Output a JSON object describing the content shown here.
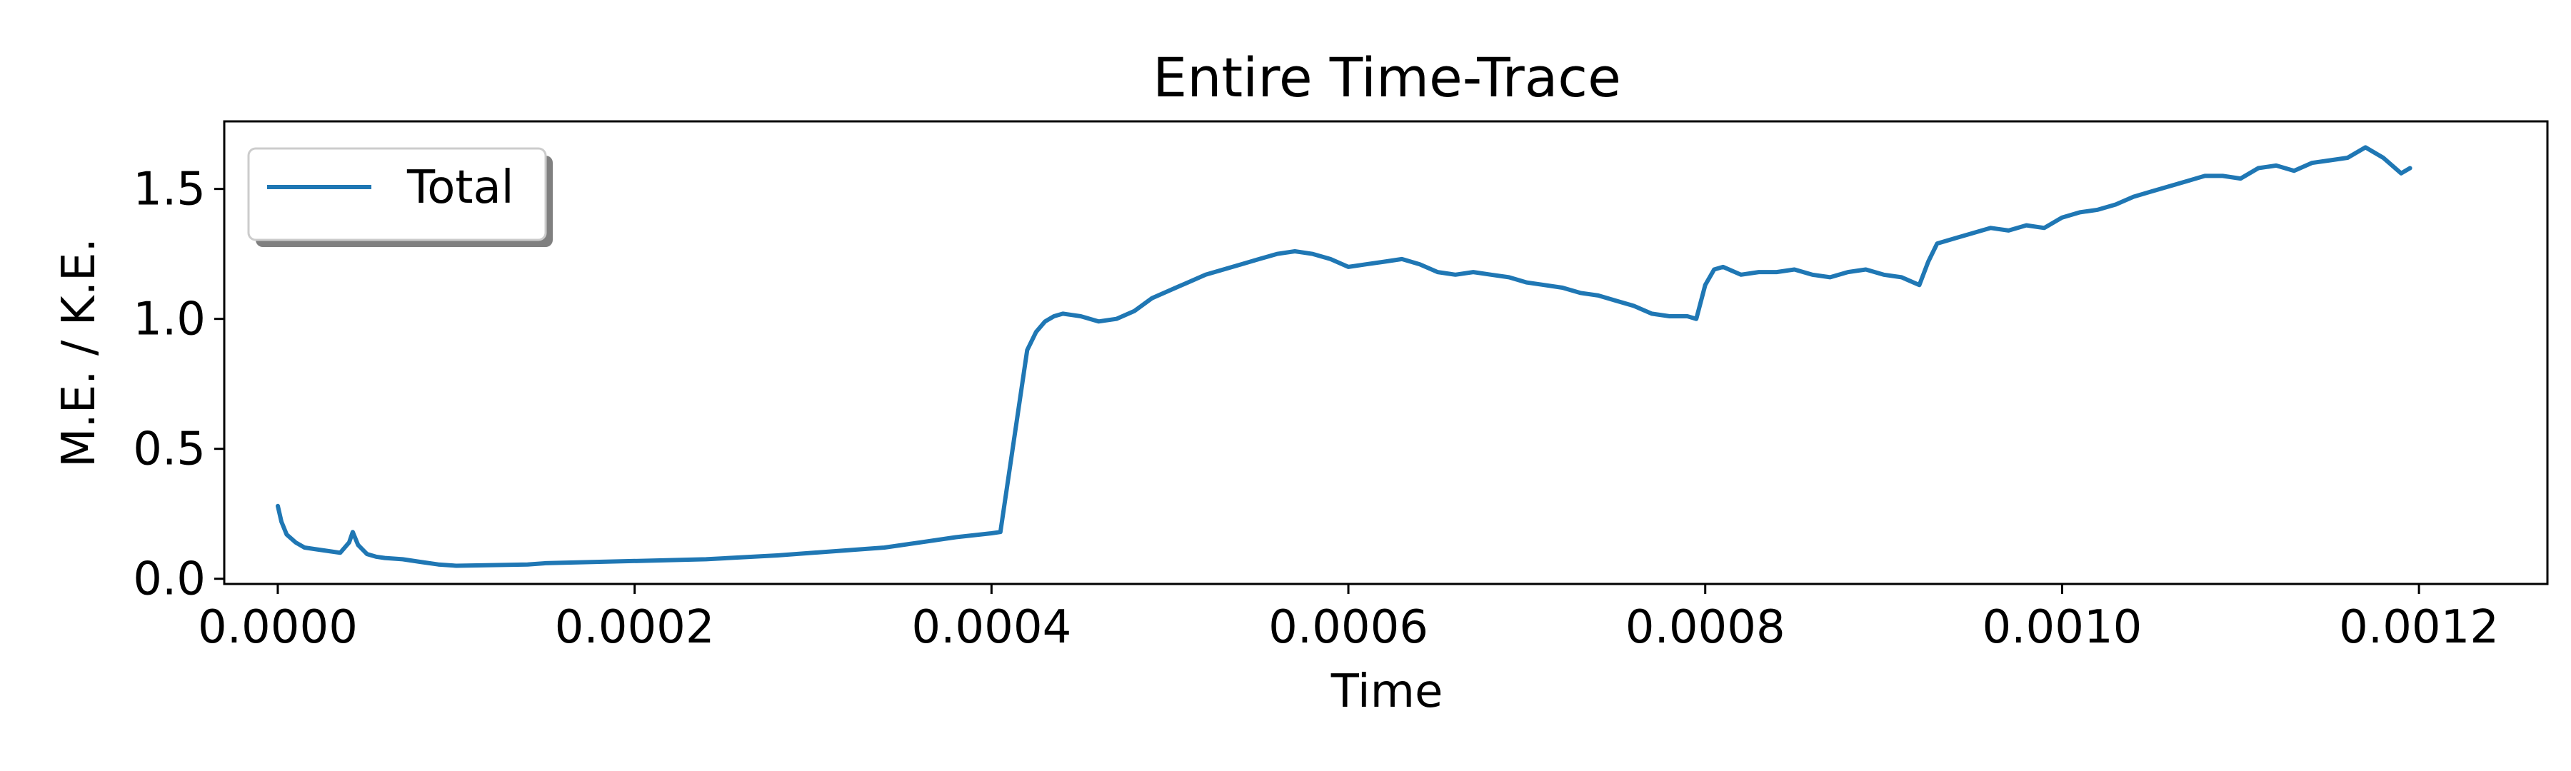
{
  "chart_data": {
    "type": "line",
    "title": "Entire Time-Trace",
    "xlabel": "Time",
    "ylabel": "M.E. / K.E.",
    "xlim": [
      -3e-05,
      0.001272
    ],
    "ylim": [
      -0.02,
      1.76
    ],
    "xticks": [
      0.0,
      0.0002,
      0.0004,
      0.0006,
      0.0008,
      0.001,
      0.0012
    ],
    "xtick_labels": [
      "0.0000",
      "0.0002",
      "0.0004",
      "0.0006",
      "0.0008",
      "0.0010",
      "0.0012"
    ],
    "yticks": [
      0.0,
      0.5,
      1.0,
      1.5
    ],
    "ytick_labels": [
      "0.0",
      "0.5",
      "1.0",
      "1.5"
    ],
    "grid": false,
    "legend_position": "upper-left",
    "color": "#1f77b4",
    "series": [
      {
        "name": "Total",
        "x": [
          0.0,
          2e-06,
          5e-06,
          1e-05,
          1.5e-05,
          2e-05,
          3e-05,
          3.5e-05,
          4e-05,
          4.2e-05,
          4.5e-05,
          5e-05,
          5.5e-05,
          6e-05,
          7e-05,
          8e-05,
          9e-05,
          0.0001,
          0.00014,
          0.00015,
          0.00024,
          0.00028,
          0.00034,
          0.00036,
          0.00038,
          0.0004,
          0.000405,
          0.00042,
          0.000425,
          0.00043,
          0.000435,
          0.00044,
          0.000445,
          0.00045,
          0.00046,
          0.00047,
          0.00048,
          0.00049,
          0.0005,
          0.00051,
          0.00052,
          0.00053,
          0.00054,
          0.00055,
          0.00056,
          0.00057,
          0.00058,
          0.00059,
          0.0006,
          0.00061,
          0.00062,
          0.00063,
          0.00064,
          0.00065,
          0.00066,
          0.00067,
          0.00068,
          0.00069,
          0.0007,
          0.00071,
          0.00072,
          0.00073,
          0.00074,
          0.00075,
          0.00076,
          0.00077,
          0.00078,
          0.00079,
          0.000795,
          0.0008,
          0.000805,
          0.00081,
          0.00082,
          0.00083,
          0.00084,
          0.00085,
          0.00086,
          0.00087,
          0.00088,
          0.00089,
          0.0009,
          0.00091,
          0.00092,
          0.000925,
          0.00093,
          0.00094,
          0.00095,
          0.00096,
          0.00097,
          0.00098,
          0.00099,
          0.001,
          0.00101,
          0.00102,
          0.00103,
          0.00104,
          0.00105,
          0.00106,
          0.00107,
          0.00108,
          0.00109,
          0.0011,
          0.00111,
          0.00112,
          0.00113,
          0.00114,
          0.00115,
          0.00116,
          0.00117,
          0.00118,
          0.00119,
          0.001195
        ],
        "y": [
          0.28,
          0.22,
          0.17,
          0.14,
          0.12,
          0.115,
          0.105,
          0.1,
          0.14,
          0.18,
          0.13,
          0.095,
          0.085,
          0.08,
          0.075,
          0.065,
          0.055,
          0.05,
          0.055,
          0.06,
          0.075,
          0.09,
          0.12,
          0.14,
          0.16,
          0.175,
          0.18,
          0.88,
          0.95,
          0.99,
          1.01,
          1.02,
          1.015,
          1.01,
          0.99,
          1.0,
          1.03,
          1.08,
          1.11,
          1.14,
          1.17,
          1.19,
          1.21,
          1.23,
          1.25,
          1.26,
          1.25,
          1.23,
          1.2,
          1.21,
          1.22,
          1.23,
          1.21,
          1.18,
          1.17,
          1.18,
          1.17,
          1.16,
          1.14,
          1.13,
          1.12,
          1.1,
          1.09,
          1.07,
          1.05,
          1.02,
          1.01,
          1.01,
          1.0,
          1.13,
          1.19,
          1.2,
          1.17,
          1.18,
          1.18,
          1.19,
          1.17,
          1.16,
          1.18,
          1.19,
          1.17,
          1.16,
          1.13,
          1.22,
          1.29,
          1.31,
          1.33,
          1.35,
          1.34,
          1.36,
          1.35,
          1.39,
          1.41,
          1.42,
          1.44,
          1.47,
          1.49,
          1.51,
          1.53,
          1.55,
          1.55,
          1.54,
          1.58,
          1.59,
          1.57,
          1.6,
          1.61,
          1.62,
          1.66,
          1.62,
          1.56,
          1.58
        ]
      }
    ]
  }
}
